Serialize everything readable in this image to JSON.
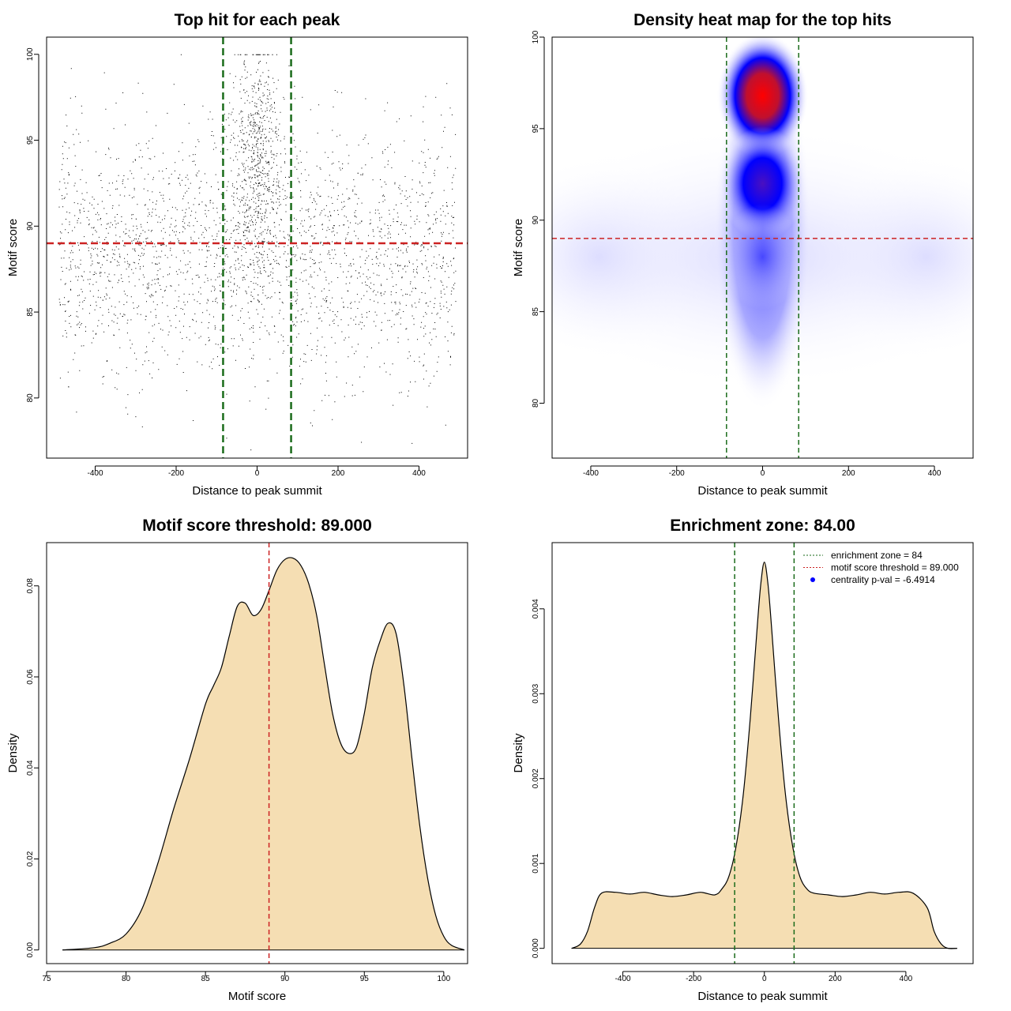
{
  "chart_data": [
    {
      "type": "scatter",
      "title": "Top hit for each peak",
      "xlabel": "Distance to peak summit",
      "ylabel": "Motif score",
      "xlim": [
        -520,
        520
      ],
      "ylim": [
        76.5,
        101
      ],
      "xticks": [
        -400,
        -200,
        0,
        200,
        400
      ],
      "yticks": [
        80,
        85,
        90,
        95,
        100
      ],
      "xtick_labels": [
        "-400",
        "-200",
        "0",
        "200",
        "400"
      ],
      "ytick_labels": [
        "80",
        "85",
        "90",
        "95",
        "100"
      ],
      "point_color": "#000000",
      "threshold_color": "#cc2222",
      "zone_color": "#1a6b1a",
      "vlines": [
        -84,
        84
      ],
      "hline": 89,
      "x_range": [
        -490,
        490
      ],
      "y_range": [
        77,
        100
      ],
      "approx_points": 20000,
      "background": {
        "center": 0,
        "spread": 490,
        "score_mean": 88.5,
        "score_sd": 3.6
      },
      "central_cluster": {
        "center": 0,
        "sd": 28,
        "score_mean": 93.5,
        "score_sd": 3.5
      }
    },
    {
      "type": "heatmap",
      "title": "Density heat map for the top hits",
      "xlabel": "Distance to peak summit",
      "ylabel": "Motif score",
      "xlim": [
        -490,
        490
      ],
      "ylim": [
        77,
        100
      ],
      "xticks": [
        -400,
        -200,
        0,
        200,
        400
      ],
      "yticks": [
        80,
        85,
        90,
        95,
        100
      ],
      "xtick_labels": [
        "-400",
        "-200",
        "0",
        "200",
        "400"
      ],
      "ytick_labels": [
        "80",
        "85",
        "90",
        "95",
        "100"
      ],
      "colors": [
        "#ffffff",
        "#0000ff",
        "#ff0000"
      ],
      "threshold_color": "#cc2222",
      "zone_color": "#1a6b1a",
      "vlines": [
        -84,
        84
      ],
      "hline": 89,
      "density_peaks": [
        {
          "x": 0,
          "y": 96.8,
          "weight": 1.0
        },
        {
          "x": 0,
          "y": 92.0,
          "weight": 0.62
        },
        {
          "x": 0,
          "y": 88.0,
          "weight": 0.35
        }
      ]
    },
    {
      "type": "area",
      "title": "Motif score threshold: 89.000",
      "xlabel": "Motif score",
      "ylabel": "Density",
      "xlim": [
        75,
        101.5
      ],
      "ylim": [
        -0.003,
        0.0895
      ],
      "xticks": [
        75,
        80,
        85,
        90,
        95,
        100
      ],
      "yticks": [
        0.0,
        0.02,
        0.04,
        0.06,
        0.08
      ],
      "xtick_labels": [
        "75",
        "80",
        "85",
        "90",
        "95",
        "100"
      ],
      "ytick_labels": [
        "0.00",
        "0.02",
        "0.04",
        "0.06",
        "0.08"
      ],
      "fill_color": "#f5deb3",
      "threshold_color": "#cc2222",
      "vline": 89,
      "x": [
        76,
        78,
        79,
        80,
        81,
        82,
        83,
        84,
        85,
        85.5,
        86,
        86.5,
        87,
        87.5,
        88,
        88.5,
        89,
        89.5,
        90,
        90.5,
        91,
        91.5,
        92,
        92.5,
        93,
        93.5,
        94,
        94.5,
        95,
        95.5,
        96,
        96.5,
        97,
        97.5,
        98,
        98.5,
        99,
        99.5,
        100,
        100.5,
        101.3
      ],
      "y": [
        0.0,
        0.0005,
        0.0015,
        0.0035,
        0.009,
        0.019,
        0.031,
        0.042,
        0.054,
        0.058,
        0.062,
        0.069,
        0.0755,
        0.0762,
        0.0735,
        0.0748,
        0.079,
        0.0835,
        0.0858,
        0.0861,
        0.0845,
        0.0805,
        0.0735,
        0.0625,
        0.052,
        0.0455,
        0.0432,
        0.0445,
        0.052,
        0.062,
        0.068,
        0.0718,
        0.0695,
        0.058,
        0.042,
        0.027,
        0.0155,
        0.0075,
        0.003,
        0.001,
        0.0
      ]
    },
    {
      "type": "area",
      "title": "Enrichment zone: 84.00",
      "xlabel": "Distance to peak summit",
      "ylabel": "Density",
      "xlim": [
        -600,
        590
      ],
      "ylim": [
        -0.00018,
        0.00478
      ],
      "xticks": [
        -400,
        -200,
        0,
        200,
        400
      ],
      "yticks": [
        0.0,
        0.001,
        0.002,
        0.003,
        0.004
      ],
      "xtick_labels": [
        "-400",
        "-200",
        "0",
        "200",
        "400"
      ],
      "ytick_labels": [
        "0.000",
        "0.001",
        "0.002",
        "0.003",
        "0.004"
      ],
      "fill_color": "#f5deb3",
      "zone_color": "#1a6b1a",
      "vlines": [
        -84,
        84
      ],
      "x": [
        -545,
        -520,
        -500,
        -480,
        -460,
        -420,
        -380,
        -340,
        -300,
        -260,
        -220,
        -180,
        -140,
        -120,
        -100,
        -80,
        -60,
        -40,
        -20,
        -10,
        0,
        10,
        20,
        40,
        60,
        80,
        100,
        120,
        140,
        180,
        220,
        260,
        300,
        340,
        380,
        420,
        460,
        480,
        500,
        520,
        545
      ],
      "y": [
        0.0,
        5e-05,
        0.0002,
        0.00048,
        0.00065,
        0.00066,
        0.00064,
        0.00066,
        0.00063,
        0.00061,
        0.00063,
        0.00066,
        0.00063,
        0.0007,
        0.00085,
        0.0012,
        0.0018,
        0.0027,
        0.0038,
        0.0043,
        0.00455,
        0.0043,
        0.0038,
        0.0027,
        0.0018,
        0.0012,
        0.00085,
        0.0007,
        0.00065,
        0.00063,
        0.00061,
        0.00063,
        0.00066,
        0.00064,
        0.00066,
        0.00065,
        0.00048,
        0.0002,
        5e-05,
        0.0,
        0.0
      ],
      "legend": [
        {
          "label": "enrichment zone = 84",
          "color": "#1a6b1a",
          "style": "dotted-line"
        },
        {
          "label": "motif score threshold = 89.000",
          "color": "#cc2222",
          "style": "dotted-line"
        },
        {
          "label": "centrality p-val = -6.4914",
          "color": "#0000ff",
          "style": "point"
        }
      ],
      "legend_position": "top-right"
    }
  ]
}
